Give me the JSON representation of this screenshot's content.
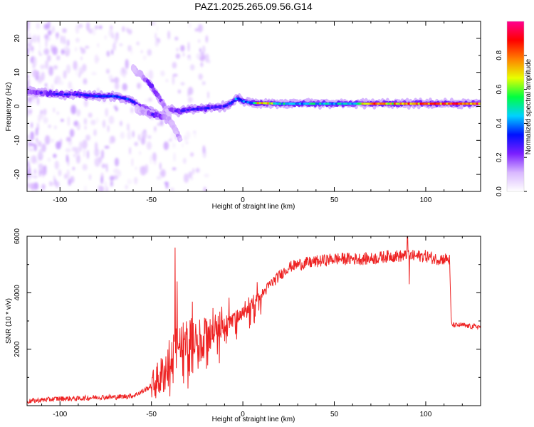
{
  "title": "PAZ1.2025.265.09.56.G14",
  "colors": {
    "snr_line": "#ee2222",
    "frame": "#000000",
    "background": "#ffffff",
    "colormap": [
      "#ffffff",
      "#d9b8ff",
      "#7b1fff",
      "#0010ff",
      "#00d2ff",
      "#00ff40",
      "#e8ff00",
      "#ff8000",
      "#ff0000",
      "#ff0090"
    ]
  },
  "chart_data": [
    {
      "type": "heatmap",
      "name": "spectrogram",
      "xlabel": "Height of straight line (km)",
      "ylabel": "Frequency (Hz)",
      "xlim": [
        -118,
        130
      ],
      "ylim": [
        -25,
        25
      ],
      "xticks": [
        -100,
        -50,
        0,
        50,
        100
      ],
      "yticks": [
        -20,
        -10,
        0,
        10,
        20
      ],
      "xtick_labels": [
        "-100",
        "-50",
        "0",
        "50",
        "100"
      ],
      "ytick_labels": [
        "-20",
        "-10",
        "0",
        "10",
        "20"
      ],
      "colorbar": {
        "label": "Normalized spectral amplitude",
        "range": [
          0,
          1
        ],
        "ticks": [
          0.0,
          0.2,
          0.4,
          0.6,
          0.8
        ],
        "tick_labels": [
          "0.0",
          "0.2",
          "0.4",
          "0.6",
          "0.8"
        ]
      },
      "ridges": [
        {
          "name": "main-tone",
          "x": [
            -118,
            -110,
            -100,
            -90,
            -80,
            -70,
            -62,
            -56,
            -50,
            -45,
            -40,
            -35,
            -30,
            -20,
            -10,
            -5,
            -3,
            0,
            5,
            10,
            20,
            30,
            40,
            50,
            60,
            70,
            80,
            90,
            100,
            110,
            120,
            130
          ],
          "y": [
            4.5,
            4,
            3.5,
            3.5,
            3,
            3,
            2,
            0,
            -1.5,
            -2.5,
            -1,
            -1.5,
            -1,
            -0.5,
            0,
            1.5,
            2.5,
            1.5,
            1,
            1,
            0.8,
            0.8,
            0.8,
            0.8,
            0.8,
            0.8,
            0.8,
            0.8,
            0.8,
            0.8,
            0.8,
            0.8
          ],
          "amp": [
            0.15,
            0.25,
            0.3,
            0.3,
            0.35,
            0.35,
            0.4,
            0.2,
            0.2,
            0.15,
            0.2,
            0.25,
            0.3,
            0.3,
            0.3,
            0.35,
            0.45,
            0.4,
            0.45,
            0.85,
            0.5,
            0.45,
            0.5,
            0.45,
            0.5,
            0.85,
            0.75,
            0.85,
            0.85,
            0.9,
            0.9,
            0.9
          ]
        },
        {
          "name": "descending-branch",
          "x": [
            -60,
            -55,
            -50,
            -45,
            -42,
            -40
          ],
          "y": [
            11,
            9,
            6,
            2,
            -1,
            -3
          ],
          "amp": [
            0.1,
            0.15,
            0.3,
            0.2,
            0.12,
            0.1
          ]
        },
        {
          "name": "lower-branch",
          "x": [
            -58,
            -52,
            -48,
            -44,
            -40,
            -37,
            -35,
            -34
          ],
          "y": [
            -1,
            -2,
            -2.5,
            -3,
            -4,
            -7,
            -9,
            -10
          ],
          "amp": [
            0.1,
            0.15,
            0.3,
            0.2,
            0.12,
            0.1,
            0.15,
            0.1
          ]
        }
      ]
    },
    {
      "type": "line",
      "name": "snr",
      "xlabel": "Height of straight line (km)",
      "ylabel": "SNR (10 * v/v)",
      "xlim": [
        -118,
        130
      ],
      "ylim": [
        0,
        6000
      ],
      "xticks": [
        -100,
        -50,
        0,
        50,
        100
      ],
      "yticks": [
        2000,
        4000,
        6000
      ],
      "xtick_labels": [
        "-100",
        "-50",
        "0",
        "50",
        "100"
      ],
      "ytick_labels": [
        "2000",
        "4000",
        "6000"
      ],
      "series": [
        {
          "name": "SNR",
          "x": [
            -118,
            -110,
            -100,
            -90,
            -80,
            -70,
            -60,
            -55,
            -50,
            -45,
            -40,
            -38,
            -35,
            -32,
            -30,
            -25,
            -20,
            -15,
            -10,
            -5,
            0,
            5,
            10,
            15,
            20,
            25,
            30,
            40,
            50,
            60,
            70,
            80,
            90,
            100,
            105,
            110,
            112,
            113,
            114,
            115,
            120,
            125,
            130
          ],
          "y": [
            150,
            200,
            250,
            250,
            300,
            300,
            350,
            500,
            700,
            1000,
            1500,
            1700,
            2000,
            2000,
            2100,
            2200,
            2400,
            2700,
            2900,
            3100,
            3300,
            3600,
            3900,
            4300,
            4600,
            4900,
            5000,
            5100,
            5200,
            5200,
            5200,
            5300,
            5300,
            5300,
            5200,
            5200,
            5200,
            5150,
            2900,
            2850,
            2850,
            2800,
            2800
          ]
        }
      ],
      "spikes": [
        {
          "x": -37,
          "y": 5600
        },
        {
          "x": -36,
          "y": 4400
        },
        {
          "x": 90,
          "y": 6000
        },
        {
          "x": 91,
          "y": 4300
        }
      ]
    }
  ]
}
